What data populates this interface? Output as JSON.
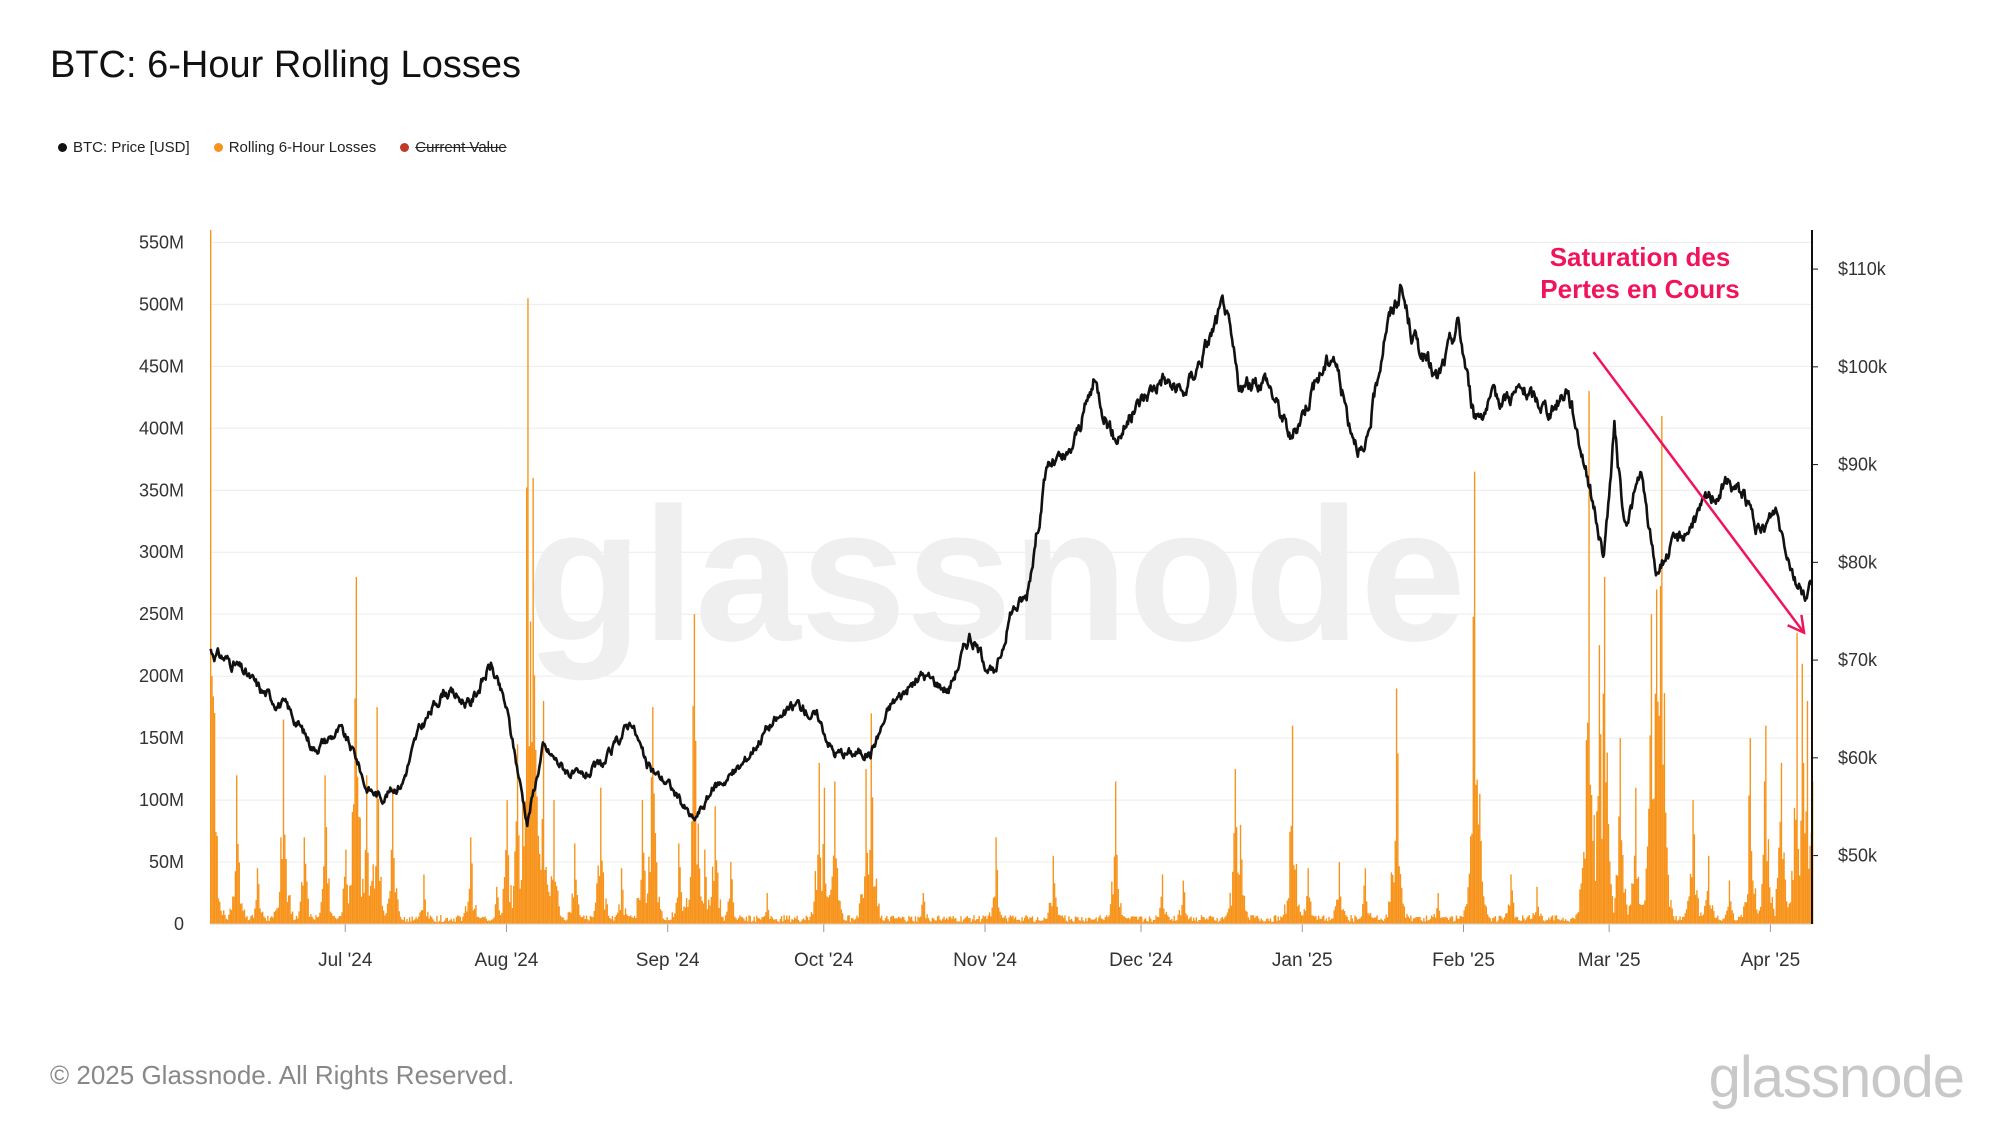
{
  "page": {
    "title": "BTC: 6-Hour Rolling Losses",
    "copyright": "© 2025 Glassnode. All Rights Reserved.",
    "watermark": "glassnode",
    "logo": "glassnode"
  },
  "legend": [
    {
      "label": "BTC: Price [USD]",
      "color": "#111111",
      "struck": false
    },
    {
      "label": "Rolling 6-Hour Losses",
      "color": "#f7931a",
      "struck": false
    },
    {
      "label": "Current Value",
      "color": "#c0392b",
      "struck": true
    }
  ],
  "chart_data": {
    "type": "bar+line",
    "title": "BTC: 6-Hour Rolling Losses",
    "x_range": [
      "2024-06-05",
      "2025-04-09"
    ],
    "x_ticks": [
      "Jul '24",
      "Aug '24",
      "Sep '24",
      "Oct '24",
      "Nov '24",
      "Dec '24",
      "Jan '25",
      "Feb '25",
      "Mar '25",
      "Apr '25"
    ],
    "y_left": {
      "ticks": [
        "0",
        "50M",
        "100M",
        "150M",
        "200M",
        "250M",
        "300M",
        "350M",
        "400M",
        "450M",
        "500M",
        "550M"
      ],
      "range": [
        0,
        560000000
      ]
    },
    "y_right": {
      "ticks": [
        "$50k",
        "$60k",
        "$70k",
        "$80k",
        "$90k",
        "$100k",
        "$110k"
      ],
      "range": [
        43000,
        114000
      ]
    },
    "grid": true,
    "annotation": {
      "text_lines": [
        "Saturation des",
        "Pertes en Cours"
      ],
      "color": "#f0145a",
      "arrow_from": {
        "x": "2025-02-26",
        "y_price": 101500
      },
      "arrow_to": {
        "x": "2025-04-09",
        "y_price": 72800
      }
    },
    "series": [
      {
        "name": "BTC: Price [USD]",
        "axis": "right",
        "color": "#111111",
        "points": [
          [
            "2024-06-05",
            71000
          ],
          [
            "2024-06-10",
            69500
          ],
          [
            "2024-06-15",
            66800
          ],
          [
            "2024-06-20",
            65000
          ],
          [
            "2024-06-25",
            61000
          ],
          [
            "2024-06-30",
            62800
          ],
          [
            "2024-07-03",
            60200
          ],
          [
            "2024-07-05",
            57000
          ],
          [
            "2024-07-08",
            56000
          ],
          [
            "2024-07-12",
            57500
          ],
          [
            "2024-07-15",
            62500
          ],
          [
            "2024-07-20",
            67000
          ],
          [
            "2024-07-25",
            65500
          ],
          [
            "2024-07-29",
            69500
          ],
          [
            "2024-08-01",
            65000
          ],
          [
            "2024-08-05",
            53500
          ],
          [
            "2024-08-08",
            61000
          ],
          [
            "2024-08-12",
            59000
          ],
          [
            "2024-08-15",
            57800
          ],
          [
            "2024-08-20",
            59500
          ],
          [
            "2024-08-25",
            64000
          ],
          [
            "2024-08-28",
            59000
          ],
          [
            "2024-09-01",
            57500
          ],
          [
            "2024-09-06",
            53500
          ],
          [
            "2024-09-10",
            57000
          ],
          [
            "2024-09-15",
            59000
          ],
          [
            "2024-09-20",
            63000
          ],
          [
            "2024-09-26",
            65500
          ],
          [
            "2024-09-30",
            64000
          ],
          [
            "2024-10-03",
            60500
          ],
          [
            "2024-10-10",
            60500
          ],
          [
            "2024-10-14",
            65500
          ],
          [
            "2024-10-20",
            68500
          ],
          [
            "2024-10-25",
            67000
          ],
          [
            "2024-10-29",
            72500
          ],
          [
            "2024-11-03",
            68200
          ],
          [
            "2024-11-06",
            75000
          ],
          [
            "2024-11-09",
            76500
          ],
          [
            "2024-11-13",
            90000
          ],
          [
            "2024-11-17",
            90500
          ],
          [
            "2024-11-22",
            98500
          ],
          [
            "2024-11-26",
            92500
          ],
          [
            "2024-12-01",
            96500
          ],
          [
            "2024-12-05",
            99000
          ],
          [
            "2024-12-09",
            97000
          ],
          [
            "2024-12-13",
            101500
          ],
          [
            "2024-12-17",
            106500
          ],
          [
            "2024-12-20",
            97500
          ],
          [
            "2024-12-25",
            99000
          ],
          [
            "2024-12-30",
            92500
          ],
          [
            "2025-01-03",
            98000
          ],
          [
            "2025-01-07",
            101500
          ],
          [
            "2025-01-10",
            94500
          ],
          [
            "2025-01-13",
            90500
          ],
          [
            "2025-01-17",
            104000
          ],
          [
            "2025-01-20",
            108000
          ],
          [
            "2025-01-22",
            103500
          ],
          [
            "2025-01-27",
            98500
          ],
          [
            "2025-01-31",
            104500
          ],
          [
            "2025-02-03",
            95000
          ],
          [
            "2025-02-07",
            96500
          ],
          [
            "2025-02-12",
            97500
          ],
          [
            "2025-02-18",
            95500
          ],
          [
            "2025-02-21",
            98000
          ],
          [
            "2025-02-25",
            88500
          ],
          [
            "2025-02-28",
            80500
          ],
          [
            "2025-03-02",
            93500
          ],
          [
            "2025-03-04",
            83500
          ],
          [
            "2025-03-07",
            89000
          ],
          [
            "2025-03-10",
            79000
          ],
          [
            "2025-03-13",
            81500
          ],
          [
            "2025-03-17",
            84000
          ],
          [
            "2025-03-20",
            86500
          ],
          [
            "2025-03-24",
            88000
          ],
          [
            "2025-03-27",
            87000
          ],
          [
            "2025-03-30",
            82500
          ],
          [
            "2025-04-02",
            85500
          ],
          [
            "2025-04-06",
            78000
          ],
          [
            "2025-04-08",
            76500
          ],
          [
            "2025-04-09",
            78500
          ]
        ]
      },
      {
        "name": "Rolling 6-Hour Losses",
        "axis": "left",
        "color": "#f7931a",
        "baseline_level": 4000000,
        "spikes": [
          [
            "2024-06-05",
            560000000
          ],
          [
            "2024-06-10",
            120000000
          ],
          [
            "2024-06-14",
            45000000
          ],
          [
            "2024-06-19",
            165000000
          ],
          [
            "2024-06-23",
            70000000
          ],
          [
            "2024-06-27",
            120000000
          ],
          [
            "2024-07-01",
            60000000
          ],
          [
            "2024-07-03",
            280000000
          ],
          [
            "2024-07-05",
            120000000
          ],
          [
            "2024-07-07",
            175000000
          ],
          [
            "2024-07-10",
            110000000
          ],
          [
            "2024-07-16",
            40000000
          ],
          [
            "2024-07-25",
            70000000
          ],
          [
            "2024-07-30",
            30000000
          ],
          [
            "2024-08-01",
            100000000
          ],
          [
            "2024-08-03",
            145000000
          ],
          [
            "2024-08-05",
            505000000
          ],
          [
            "2024-08-06",
            360000000
          ],
          [
            "2024-08-08",
            180000000
          ],
          [
            "2024-08-10",
            100000000
          ],
          [
            "2024-08-14",
            65000000
          ],
          [
            "2024-08-19",
            110000000
          ],
          [
            "2024-08-23",
            45000000
          ],
          [
            "2024-08-27",
            100000000
          ],
          [
            "2024-08-29",
            175000000
          ],
          [
            "2024-09-03",
            65000000
          ],
          [
            "2024-09-06",
            250000000
          ],
          [
            "2024-09-08",
            60000000
          ],
          [
            "2024-09-10",
            95000000
          ],
          [
            "2024-09-13",
            50000000
          ],
          [
            "2024-09-20",
            25000000
          ],
          [
            "2024-09-30",
            130000000
          ],
          [
            "2024-10-01",
            110000000
          ],
          [
            "2024-10-03",
            115000000
          ],
          [
            "2024-10-09",
            125000000
          ],
          [
            "2024-10-10",
            170000000
          ],
          [
            "2024-10-20",
            25000000
          ],
          [
            "2024-11-03",
            70000000
          ],
          [
            "2024-11-14",
            55000000
          ],
          [
            "2024-11-26",
            115000000
          ],
          [
            "2024-12-05",
            40000000
          ],
          [
            "2024-12-09",
            35000000
          ],
          [
            "2024-12-19",
            125000000
          ],
          [
            "2024-12-20",
            80000000
          ],
          [
            "2024-12-30",
            160000000
          ],
          [
            "2025-01-02",
            45000000
          ],
          [
            "2025-01-08",
            50000000
          ],
          [
            "2025-01-13",
            45000000
          ],
          [
            "2025-01-19",
            190000000
          ],
          [
            "2025-01-27",
            25000000
          ],
          [
            "2025-02-03",
            365000000
          ],
          [
            "2025-02-04",
            105000000
          ],
          [
            "2025-02-10",
            40000000
          ],
          [
            "2025-02-15",
            30000000
          ],
          [
            "2025-02-25",
            430000000
          ],
          [
            "2025-02-27",
            225000000
          ],
          [
            "2025-02-28",
            280000000
          ],
          [
            "2025-03-03",
            150000000
          ],
          [
            "2025-03-06",
            110000000
          ],
          [
            "2025-03-09",
            250000000
          ],
          [
            "2025-03-10",
            270000000
          ],
          [
            "2025-03-11",
            410000000
          ],
          [
            "2025-03-17",
            100000000
          ],
          [
            "2025-03-20",
            55000000
          ],
          [
            "2025-03-24",
            35000000
          ],
          [
            "2025-03-28",
            150000000
          ],
          [
            "2025-03-31",
            160000000
          ],
          [
            "2025-04-03",
            130000000
          ],
          [
            "2025-04-06",
            235000000
          ],
          [
            "2025-04-07",
            210000000
          ],
          [
            "2025-04-08",
            180000000
          ],
          [
            "2025-04-09",
            115000000
          ]
        ]
      }
    ]
  }
}
